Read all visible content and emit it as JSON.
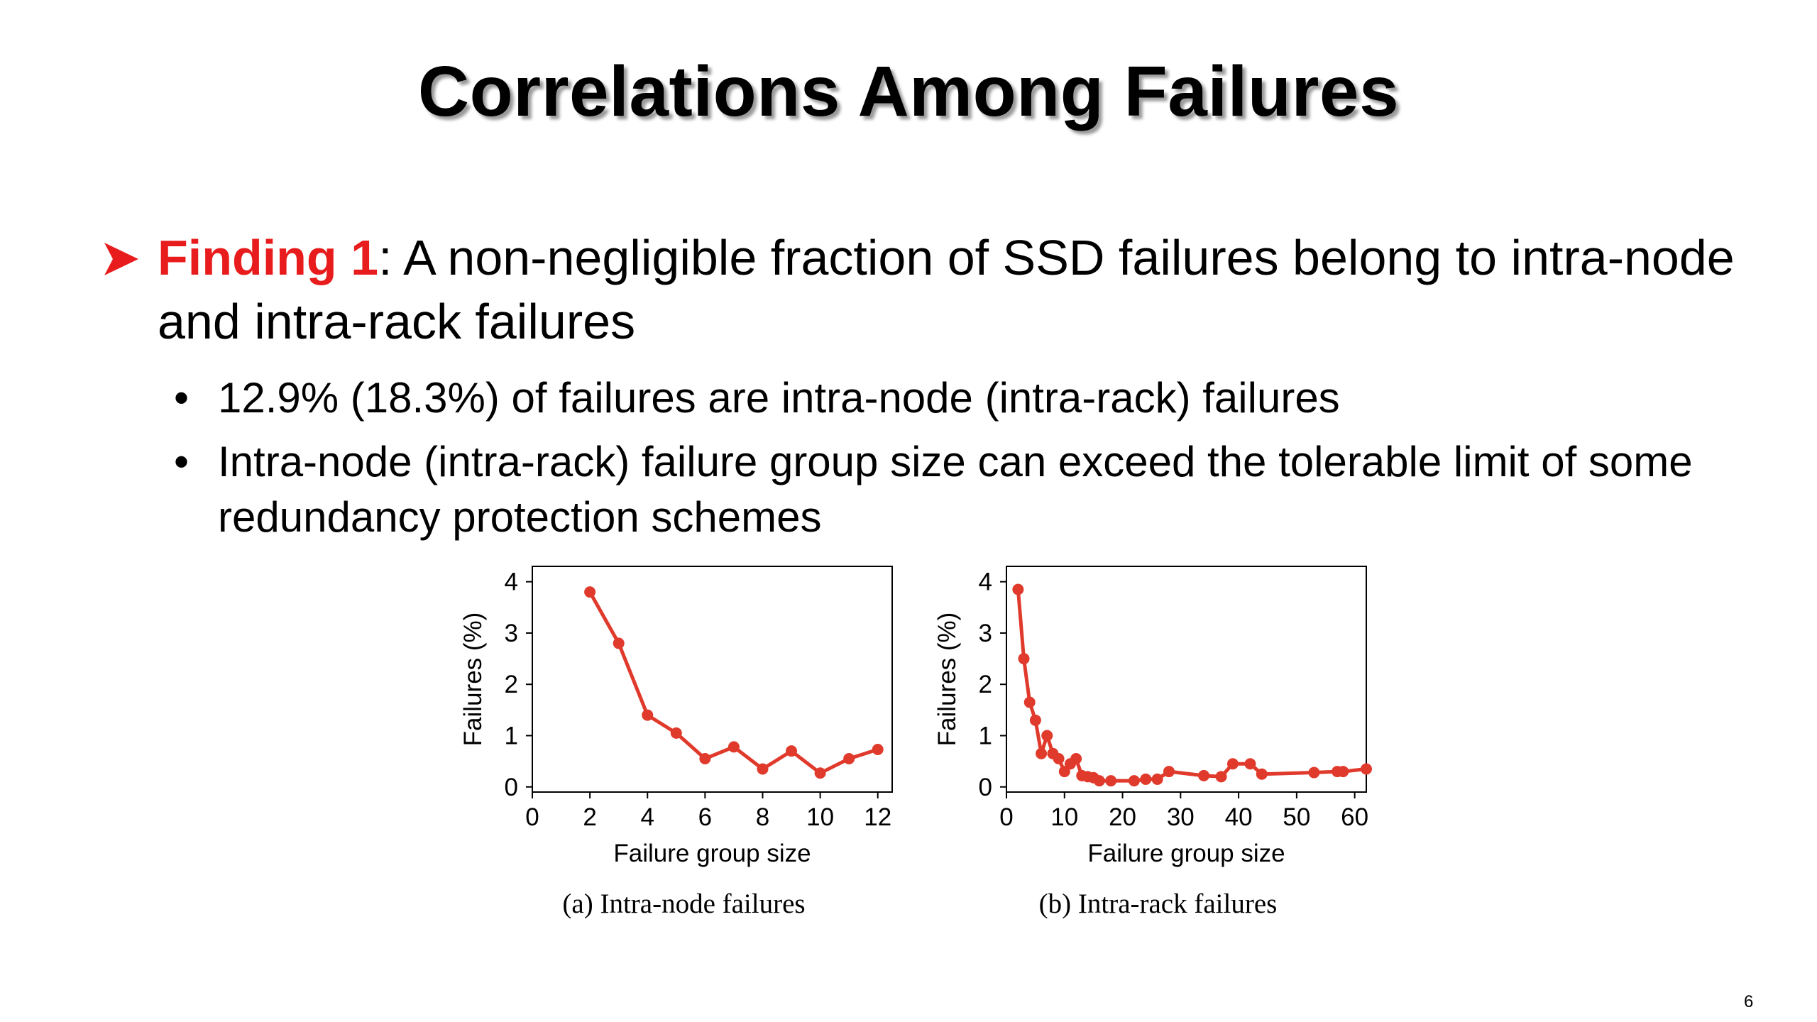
{
  "slide": {
    "title": "Correlations Among Failures",
    "finding_label": "Finding 1",
    "finding_text": ": A non-negligible fraction of SSD failures belong to intra-node and intra-rack failures",
    "bullets": [
      "12.9% (18.3%) of failures are intra-node (intra-rack) failures",
      "Intra-node (intra-rack) failure group size can exceed the tolerable limit of some redundancy protection schemes"
    ],
    "page_number": "6",
    "colors": {
      "accent": "#e81c1c",
      "series": "#e03a2c"
    }
  },
  "chart_data": [
    {
      "type": "line",
      "caption": "(a) Intra-node failures",
      "xlabel": "Failure group size",
      "ylabel": "Failures (%)",
      "xlim": [
        0,
        12.5
      ],
      "ylim": [
        -0.1,
        4.3
      ],
      "xticks": [
        0,
        2,
        4,
        6,
        8,
        10,
        12
      ],
      "yticks": [
        0,
        1,
        2,
        3,
        4
      ],
      "grid": false,
      "series": [
        {
          "x": [
            2,
            3,
            4,
            5,
            6,
            7,
            8,
            9,
            10,
            11,
            12
          ],
          "y": [
            3.8,
            2.8,
            1.4,
            1.05,
            0.55,
            0.78,
            0.35,
            0.7,
            0.27,
            0.55,
            0.73
          ]
        }
      ]
    },
    {
      "type": "line",
      "caption": "(b) Intra-rack failures",
      "xlabel": "Failure group size",
      "ylabel": "Failures (%)",
      "xlim": [
        0,
        62
      ],
      "ylim": [
        -0.1,
        4.3
      ],
      "xticks": [
        0,
        10,
        20,
        30,
        40,
        50,
        60
      ],
      "yticks": [
        0,
        1,
        2,
        3,
        4
      ],
      "grid": false,
      "series": [
        {
          "x": [
            2,
            3,
            4,
            5,
            6,
            7,
            8,
            9,
            10,
            11,
            12,
            13,
            14,
            15,
            16,
            18,
            22,
            24,
            26,
            28,
            34,
            37,
            39,
            42,
            44,
            53,
            57,
            58,
            62
          ],
          "y": [
            3.85,
            2.5,
            1.65,
            1.3,
            0.65,
            1.0,
            0.65,
            0.55,
            0.3,
            0.45,
            0.55,
            0.22,
            0.2,
            0.18,
            0.12,
            0.12,
            0.12,
            0.15,
            0.15,
            0.3,
            0.22,
            0.2,
            0.45,
            0.45,
            0.25,
            0.28,
            0.3,
            0.3,
            0.35
          ]
        }
      ]
    }
  ]
}
